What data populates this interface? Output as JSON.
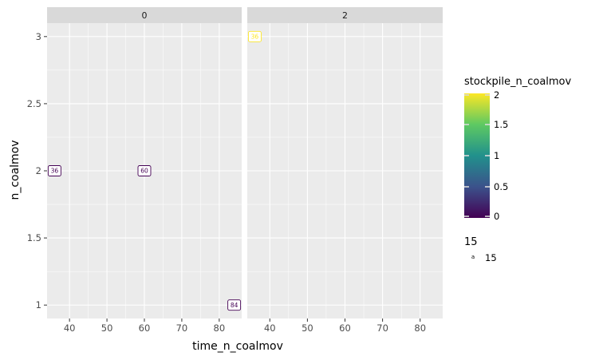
{
  "chart_data": {
    "type": "scatter",
    "xlabel": "time_n_coalmov",
    "ylabel": "n_coalmov",
    "x_ticks": [
      40,
      50,
      60,
      70,
      80
    ],
    "y_ticks": [
      1,
      1.5,
      2,
      2.5,
      3
    ],
    "y_tick_labels": [
      "1",
      "1.5",
      "2",
      "2.5",
      "3"
    ],
    "xlim": [
      34,
      86
    ],
    "ylim": [
      0.9,
      3.1
    ],
    "grid": true,
    "facets": [
      {
        "label": "0",
        "points": [
          {
            "x": 36,
            "y": 2,
            "label": "36",
            "stockpile": 0
          },
          {
            "x": 60,
            "y": 2,
            "label": "60",
            "stockpile": 0
          },
          {
            "x": 84,
            "y": 1,
            "label": "84",
            "stockpile": 0
          }
        ]
      },
      {
        "label": "2",
        "points": [
          {
            "x": 36,
            "y": 3,
            "label": "36",
            "stockpile": 2
          }
        ]
      }
    ],
    "legend": {
      "placement": "right",
      "color_title": "stockpile_n_coalmov",
      "color_ticks": [
        "0",
        "0.5",
        "1",
        "1.5",
        "2"
      ],
      "color_tick_values": [
        0,
        0.5,
        1,
        1.5,
        2
      ],
      "color_range": [
        0,
        2
      ],
      "size_title": "15",
      "size_key_symbol": "a",
      "size_entries": [
        "15"
      ]
    },
    "colors": {
      "panel_bg": "#ebebeb",
      "strip_bg": "#d9d9d9",
      "grid": "#ffffff",
      "viridis": [
        "#440154",
        "#3b528b",
        "#21918c",
        "#5ec962",
        "#fde725"
      ]
    }
  }
}
